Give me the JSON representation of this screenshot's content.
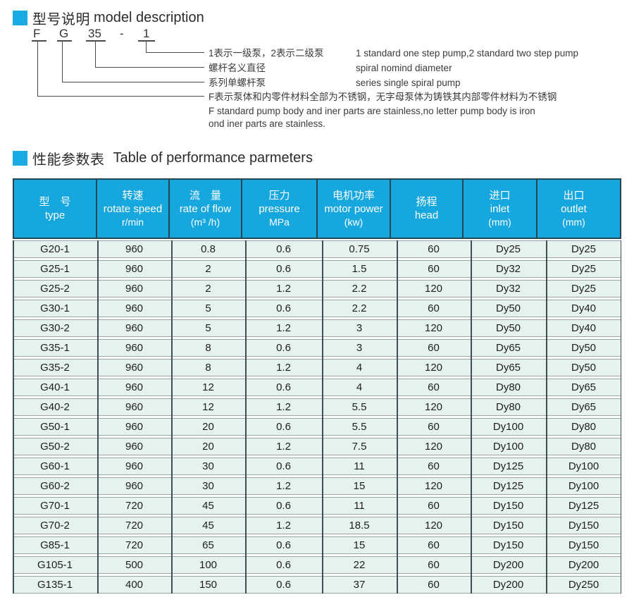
{
  "colors": {
    "accent_cyan": "#1aabe4",
    "table_header_bg": "#16a7de",
    "table_header_border": "#25454f",
    "row_bg": "#e6f2ee",
    "row_border": "#97a4a2",
    "column_line": "#3e5054",
    "text_dark": "#2d2d2d"
  },
  "section_model": {
    "bullet_icon": "blue-square",
    "title_zh": "型号说明",
    "title_en": "model description",
    "model_code": {
      "material": "F",
      "series": "G",
      "diameter": "35",
      "dash": "-",
      "steps": "1"
    },
    "callouts": [
      {
        "zh": "1表示一级泵，2表示二级泵",
        "en": "1 standard one step pump,2 standard two step pump"
      },
      {
        "zh": "螺杆名义直径",
        "en": "spiral nomind diameter"
      },
      {
        "zh": "系列单螺杆泵",
        "en": "series single spiral pump"
      },
      {
        "zh": "F表示泵体和内零件材料全部为不锈钢，无字母泵体为铸铁其内部零件材料为不锈钢",
        "en_line1": "F standard pump body and iner parts are stainless,no letter pump body is iron",
        "en_line2": "ond iner parts are stainless."
      }
    ]
  },
  "section_params": {
    "bullet_icon": "blue-square",
    "title_zh": "性能参数表",
    "title_en": "Table of performance parmeters"
  },
  "table": {
    "headers": [
      {
        "zh": "型　号",
        "en": "type",
        "unit": ""
      },
      {
        "zh": "转速",
        "en": "rotate speed",
        "unit": "r/min"
      },
      {
        "zh": "流　量",
        "en": "rate of flow",
        "unit": "(m³ /h)"
      },
      {
        "zh": "压力",
        "en": "pressure",
        "unit": "MPa"
      },
      {
        "zh": "电机功率",
        "en": "motor power",
        "unit": "(kw)"
      },
      {
        "zh": "扬程",
        "en": "head",
        "unit": ""
      },
      {
        "zh": "进口",
        "en": "inlet",
        "unit": "(mm)"
      },
      {
        "zh": "出口",
        "en": "outlet",
        "unit": "(mm)"
      }
    ],
    "rows": [
      [
        "G20-1",
        "960",
        "0.8",
        "0.6",
        "0.75",
        "60",
        "Dy25",
        "Dy25"
      ],
      [
        "G25-1",
        "960",
        "2",
        "0.6",
        "1.5",
        "60",
        "Dy32",
        "Dy25"
      ],
      [
        "G25-2",
        "960",
        "2",
        "1.2",
        "2.2",
        "120",
        "Dy32",
        "Dy25"
      ],
      [
        "G30-1",
        "960",
        "5",
        "0.6",
        "2.2",
        "60",
        "Dy50",
        "Dy40"
      ],
      [
        "G30-2",
        "960",
        "5",
        "1.2",
        "3",
        "120",
        "Dy50",
        "Dy40"
      ],
      [
        "G35-1",
        "960",
        "8",
        "0.6",
        "3",
        "60",
        "Dy65",
        "Dy50"
      ],
      [
        "G35-2",
        "960",
        "8",
        "1.2",
        "4",
        "120",
        "Dy65",
        "Dy50"
      ],
      [
        "G40-1",
        "960",
        "12",
        "0.6",
        "4",
        "60",
        "Dy80",
        "Dy65"
      ],
      [
        "G40-2",
        "960",
        "12",
        "1.2",
        "5.5",
        "120",
        "Dy80",
        "Dy65"
      ],
      [
        "G50-1",
        "960",
        "20",
        "0.6",
        "5.5",
        "60",
        "Dy100",
        "Dy80"
      ],
      [
        "G50-2",
        "960",
        "20",
        "1.2",
        "7.5",
        "120",
        "Dy100",
        "Dy80"
      ],
      [
        "G60-1",
        "960",
        "30",
        "0.6",
        "11",
        "60",
        "Dy125",
        "Dy100"
      ],
      [
        "G60-2",
        "960",
        "30",
        "1.2",
        "15",
        "120",
        "Dy125",
        "Dy100"
      ],
      [
        "G70-1",
        "720",
        "45",
        "0.6",
        "11",
        "60",
        "Dy150",
        "Dy125"
      ],
      [
        "G70-2",
        "720",
        "45",
        "1.2",
        "18.5",
        "120",
        "Dy150",
        "Dy150"
      ],
      [
        "G85-1",
        "720",
        "65",
        "0.6",
        "15",
        "60",
        "Dy150",
        "Dy150"
      ],
      [
        "G105-1",
        "500",
        "100",
        "0.6",
        "22",
        "60",
        "Dy200",
        "Dy200"
      ],
      [
        "G135-1",
        "400",
        "150",
        "0.6",
        "37",
        "60",
        "Dy200",
        "Dy250"
      ]
    ]
  }
}
